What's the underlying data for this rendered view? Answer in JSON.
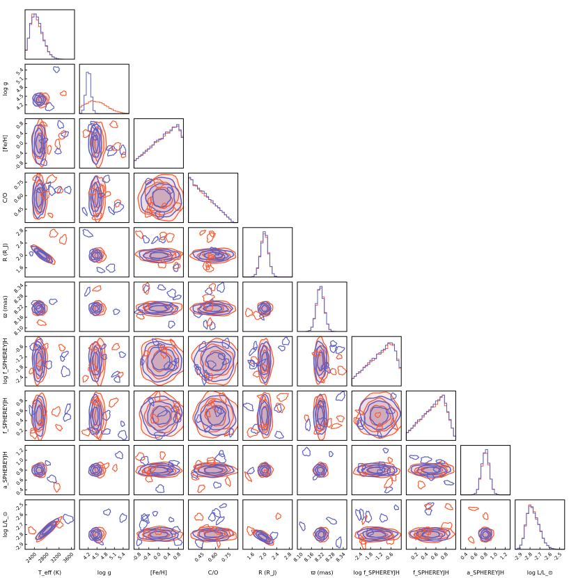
{
  "chart_data": {
    "type": "corner",
    "colors": {
      "series_a": "#fc5a2e",
      "series_b": "#5b5fc7"
    },
    "parameters": [
      {
        "label": "T_eff  (K)",
        "range": [
          2100,
          3700
        ],
        "ticks": [
          2400,
          2800,
          3200,
          3600
        ],
        "tick_labels": [
          "2400",
          "2800",
          "3200",
          "3600"
        ],
        "peak_a": 2380,
        "peak_b": 2360
      },
      {
        "label": "log g",
        "range": [
          3.9,
          5.6
        ],
        "ticks": [
          4.2,
          4.5,
          4.8,
          5.1,
          5.4
        ],
        "tick_labels": [
          "4.2",
          "4.5",
          "4.8",
          "5.1",
          "5.4"
        ],
        "peak_a": 4.5,
        "peak_b": 4.5
      },
      {
        "label": "[Fe/H]",
        "range": [
          -1.0,
          1.0
        ],
        "ticks": [
          -0.8,
          -0.4,
          0.0,
          0.4,
          0.8
        ],
        "tick_labels": [
          "-0.8",
          "-0.4",
          "0.0",
          "0.4",
          "0.8"
        ],
        "peak_a": 0.8,
        "peak_b": 0.8
      },
      {
        "label": "C/O",
        "range": [
          0.3,
          0.85
        ],
        "ticks": [
          0.45,
          0.6,
          0.75
        ],
        "tick_labels": [
          "0.45",
          "0.60",
          "0.75"
        ],
        "peak_a": 0.36,
        "peak_b": 0.36
      },
      {
        "label": "R  (R_J)",
        "range": [
          1.3,
          2.9
        ],
        "ticks": [
          1.6,
          2.0,
          2.4,
          2.8
        ],
        "tick_labels": [
          "1.6",
          "2.0",
          "2.4",
          "2.8"
        ],
        "peak_a": 2.0,
        "peak_b": 2.0
      },
      {
        "label": "ϖ  (mas)",
        "range": [
          8.08,
          8.36
        ],
        "ticks": [
          8.1,
          8.16,
          8.22,
          8.28,
          8.34
        ],
        "tick_labels": [
          "8.10",
          "8.16",
          "8.22",
          "8.28",
          "8.34"
        ],
        "peak_a": 8.21,
        "peak_b": 8.21
      },
      {
        "label": "log f_SPHEREYJH",
        "range": [
          -2.9,
          0.0
        ],
        "ticks": [
          -2.4,
          -1.8,
          -1.2,
          -0.6
        ],
        "tick_labels": [
          "-2.4",
          "-1.8",
          "-1.2",
          "-0.6"
        ],
        "peak_a": -0.5,
        "peak_b": -0.5
      },
      {
        "label": "f_SPHEREYJH",
        "range": [
          0.0,
          1.0
        ],
        "ticks": [
          0.2,
          0.4,
          0.6,
          0.8
        ],
        "tick_labels": [
          "0.2",
          "0.4",
          "0.6",
          "0.8"
        ],
        "peak_a": 0.75,
        "peak_b": 0.7
      },
      {
        "label": "a_SPHEREYJH",
        "range": [
          0.3,
          1.3
        ],
        "ticks": [
          0.4,
          0.6,
          0.8,
          1.0,
          1.2
        ],
        "tick_labels": [
          "0.4",
          "0.6",
          "0.8",
          "1.0",
          "1.2"
        ],
        "peak_a": 0.8,
        "peak_b": 0.8
      },
      {
        "label": "log L/L_⊙",
        "range": [
          -2.95,
          -2.45
        ],
        "ticks": [
          -2.9,
          -2.8,
          -2.7,
          -2.6,
          -2.5
        ],
        "tick_labels": [
          "-2.9",
          "-2.8",
          "-2.7",
          "-2.6",
          "-2.5"
        ],
        "peak_a": -2.8,
        "peak_b": -2.8
      }
    ],
    "axis_labels": [
      "T_eff  (K)",
      "log g",
      "[Fe/H]",
      "C/O",
      "R  (R_J)",
      "ϖ  (mas)",
      "log f_SPHEREYJH",
      "f_SPHEREYJH",
      "a_SPHEREYJH",
      "log L/L_⊙"
    ]
  }
}
